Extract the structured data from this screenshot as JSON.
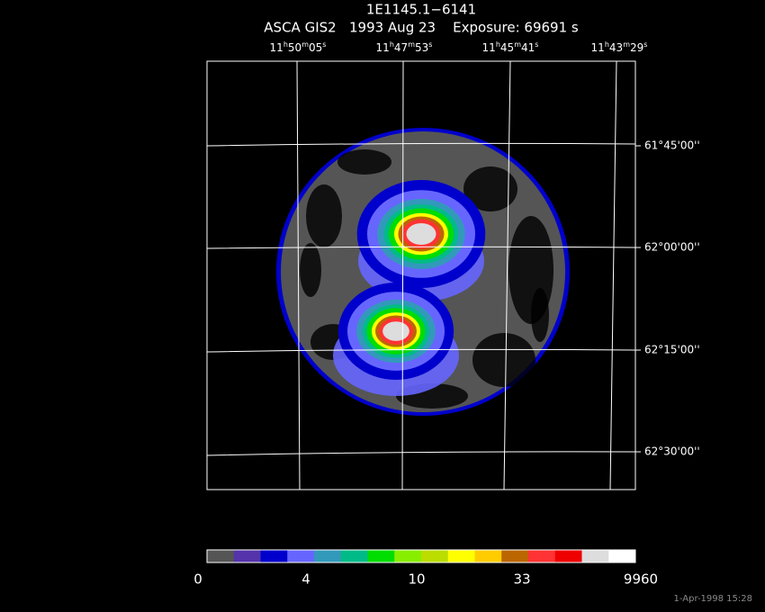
{
  "title": "1E1145.1−6141",
  "subtitle": "ASCA GIS2   1993 Aug 23    Exposure: 69691 s",
  "ra_labels": [
    [
      "11",
      "h",
      "50",
      "m",
      "05",
      "s"
    ],
    [
      "11",
      "h",
      "47",
      "m",
      "53",
      "s"
    ],
    [
      "11",
      "h",
      "45",
      "m",
      "41",
      "s"
    ],
    [
      "11",
      "h",
      "43",
      "m",
      "29",
      "s"
    ]
  ],
  "dec_labels": [
    "61°45'00''",
    "62°00'00''",
    "62°15'00''",
    "62°30'00''"
  ],
  "colorbar": {
    "colors": [
      "#555555",
      "#5533aa",
      "#0000cc",
      "#6666ff",
      "#3399bb",
      "#00bb88",
      "#00dd00",
      "#88ee00",
      "#bbdd00",
      "#ffff00",
      "#ffcc00",
      "#bb6600",
      "#ff3333",
      "#ee0000",
      "#dddddd",
      "#ffffff"
    ],
    "labels": [
      "0",
      "4",
      "10",
      "33",
      "9960"
    ]
  },
  "footer": "1-Apr-1998 15:28"
}
